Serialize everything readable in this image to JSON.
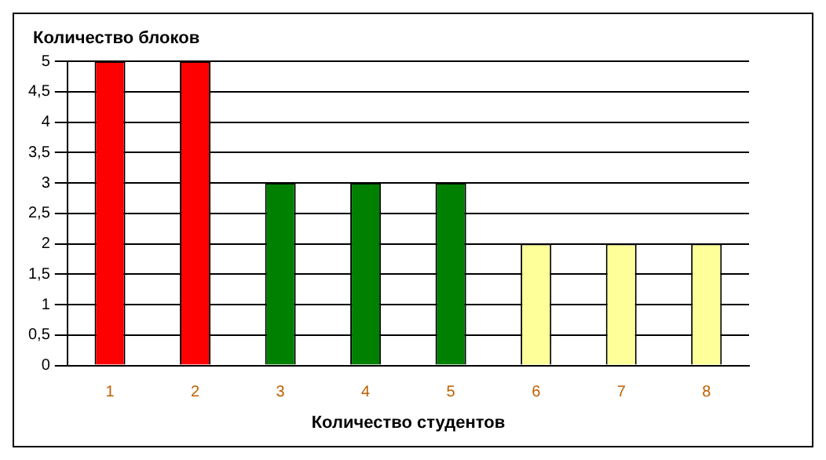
{
  "chart_data": {
    "type": "bar",
    "ylabel": "Количество блоков",
    "xlabel": "Количество студентов",
    "categories": [
      "1",
      "2",
      "3",
      "4",
      "5",
      "6",
      "7",
      "8"
    ],
    "values": [
      5,
      5,
      3,
      3,
      3,
      2,
      2,
      2
    ],
    "colors": [
      "#ff0000",
      "#ff0000",
      "#008000",
      "#008000",
      "#008000",
      "#ffff99",
      "#ffff99",
      "#ffff99"
    ],
    "ylim": [
      0,
      5
    ],
    "yticks": [
      0,
      {
        "value": 0.5,
        "label": "0,5"
      },
      1,
      {
        "value": 1.5,
        "label": "1,5"
      },
      2,
      {
        "value": 2.5,
        "label": "2,5"
      },
      3,
      {
        "value": 3.5,
        "label": "3,5"
      },
      4,
      {
        "value": 4.5,
        "label": "4,5"
      },
      5
    ],
    "grid": "y",
    "legend": false
  }
}
